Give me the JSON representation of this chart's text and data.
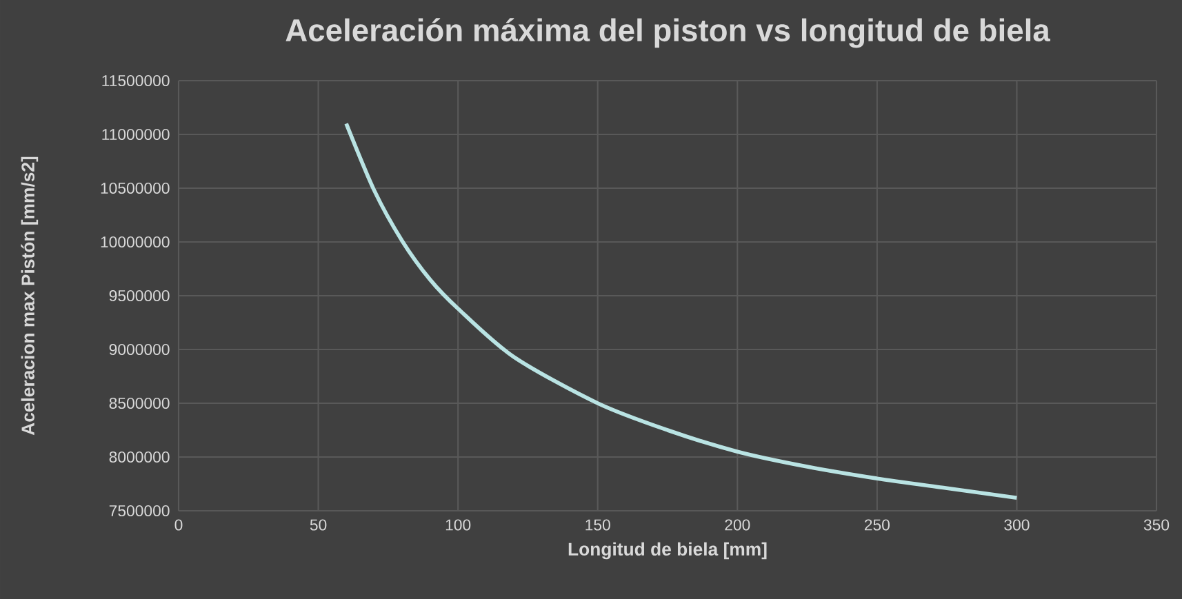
{
  "chart_data": {
    "type": "line",
    "title": "Aceleración máxima del piston vs longitud de biela",
    "xlabel": "Longitud de  biela [mm]",
    "ylabel": "Aceleracion max Pistón [mm/s2]",
    "series": [
      {
        "color": "#b9e3e3",
        "x": [
          60,
          70,
          80,
          90,
          100,
          120,
          150,
          175,
          200,
          225,
          250,
          275,
          300
        ],
        "values": [
          11100000,
          10480000,
          10010000,
          9650000,
          9380000,
          8930000,
          8500000,
          8250000,
          8050000,
          7910000,
          7800000,
          7710000,
          7620000
        ]
      }
    ],
    "xlim": [
      0,
      350
    ],
    "xticks": [
      0,
      50,
      100,
      150,
      200,
      250,
      300,
      350
    ],
    "ylim": [
      7500000,
      11500000
    ],
    "yticks": [
      7500000,
      8000000,
      8500000,
      9000000,
      9500000,
      10000000,
      10500000,
      11000000,
      11500000
    ],
    "grid": true,
    "marker": "none",
    "line_style": "solid"
  }
}
